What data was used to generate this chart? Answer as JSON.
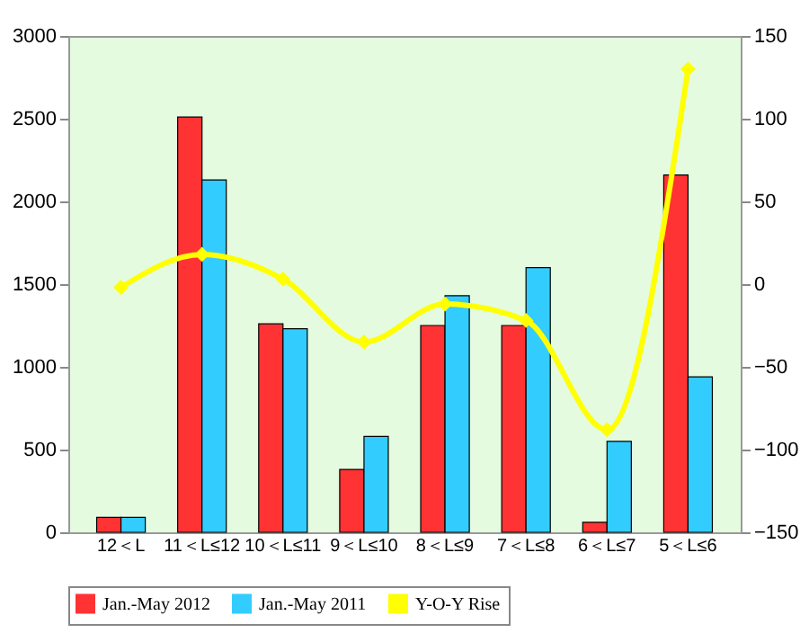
{
  "chart_data": {
    "type": "bar",
    "categories": [
      "12＜L",
      "11＜L≤12",
      "10＜L≤11",
      "9＜L≤10",
      "8＜L≤9",
      "7＜L≤8",
      "6＜L≤7",
      "5＜L≤6"
    ],
    "series": [
      {
        "name": "Jan.-May 2012",
        "color": "#ff3333",
        "values": [
          90,
          2510,
          1260,
          380,
          1250,
          1250,
          60,
          2160
        ]
      },
      {
        "name": "Jan.-May 2011",
        "color": "#33ccff",
        "values": [
          90,
          2130,
          1230,
          580,
          1430,
          1600,
          550,
          940
        ]
      },
      {
        "name": "Y-O-Y Rise",
        "type": "line",
        "axis": "y2",
        "color": "#ffff00",
        "marker": "diamond",
        "values": [
          -2,
          18,
          3,
          -35,
          -12,
          -22,
          -88,
          130
        ]
      }
    ],
    "ylim": [
      0,
      3000
    ],
    "yticks": [
      0,
      500,
      1000,
      1500,
      2000,
      2500,
      3000
    ],
    "y2lim": [
      -150,
      150
    ],
    "y2ticks": [
      -150,
      -100,
      -50,
      0,
      50,
      100,
      150
    ],
    "grid": false,
    "legend": "bottom"
  }
}
